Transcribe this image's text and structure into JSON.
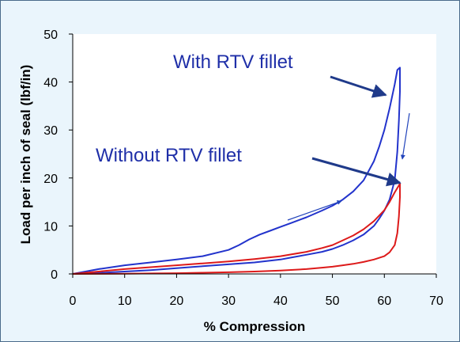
{
  "chart_data": {
    "type": "line",
    "xlabel": "% Compression",
    "ylabel": "Load per inch of seal (lbf/in)",
    "xlim": [
      0,
      70
    ],
    "ylim": [
      0,
      50
    ],
    "xticks": [
      0,
      10,
      20,
      30,
      40,
      50,
      60,
      70
    ],
    "yticks": [
      0,
      10,
      20,
      30,
      40,
      50
    ],
    "grid": false,
    "series": [
      {
        "name": "With RTV fillet",
        "color": "#2233cc",
        "x": [
          0,
          5,
          10,
          15,
          20,
          25,
          30,
          32,
          34,
          36,
          38,
          40,
          42,
          45,
          48,
          50,
          52,
          54,
          56,
          58,
          59,
          60,
          61,
          62,
          62.5,
          63,
          63,
          62.8,
          62.5,
          62,
          61,
          60,
          59,
          58,
          56,
          54,
          52,
          50,
          48,
          45,
          42,
          40,
          35,
          30,
          25,
          20,
          15,
          10,
          5,
          0
        ],
        "y": [
          0,
          1.0,
          1.8,
          2.4,
          3.0,
          3.7,
          5.0,
          6.0,
          7.2,
          8.2,
          9.0,
          9.8,
          10.6,
          11.8,
          13.2,
          14.2,
          15.5,
          17.2,
          19.5,
          23.5,
          26.5,
          30.0,
          34.5,
          39.5,
          42.5,
          43.0,
          38.0,
          32.0,
          25.5,
          19.5,
          15.5,
          13.2,
          11.5,
          10.0,
          8.2,
          7.0,
          6.0,
          5.2,
          4.6,
          4.0,
          3.4,
          3.0,
          2.4,
          2.0,
          1.6,
          1.2,
          0.8,
          0.5,
          0.2,
          0
        ]
      },
      {
        "name": "Without RTV fillet",
        "color": "#dd1a1a",
        "x": [
          0,
          5,
          10,
          15,
          20,
          25,
          30,
          35,
          40,
          45,
          48,
          50,
          52,
          54,
          56,
          58,
          60,
          61,
          62,
          63,
          63,
          62.8,
          62.5,
          62,
          61,
          60,
          58,
          56,
          54,
          52,
          50,
          48,
          45,
          40,
          35,
          30,
          25,
          20,
          15,
          10,
          5,
          0
        ],
        "y": [
          0,
          0.5,
          1.0,
          1.4,
          1.8,
          2.2,
          2.6,
          3.1,
          3.7,
          4.6,
          5.4,
          6.0,
          7.0,
          8.0,
          9.3,
          11.0,
          13.3,
          15.0,
          17.0,
          18.8,
          16.0,
          12.0,
          8.5,
          6.0,
          4.5,
          3.7,
          3.0,
          2.5,
          2.1,
          1.8,
          1.5,
          1.3,
          1.0,
          0.7,
          0.5,
          0.35,
          0.25,
          0.15,
          0.1,
          0.05,
          0.02,
          0
        ]
      }
    ],
    "annotations": [
      {
        "text": "With RTV fillet",
        "x": 21.5,
        "y": 42.5
      },
      {
        "text": "Without RTV fillet",
        "x": 5,
        "y": 24.5
      }
    ]
  }
}
